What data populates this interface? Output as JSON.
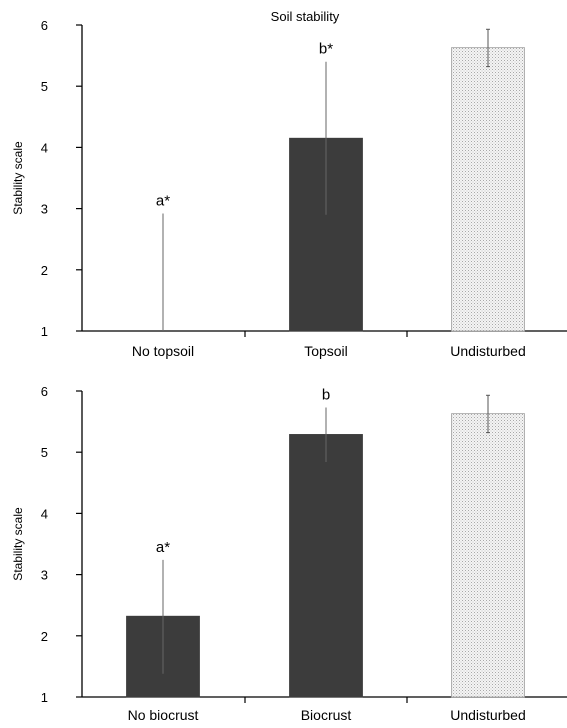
{
  "chart_data": [
    {
      "type": "bar",
      "title": "Soil stability",
      "ylabel": "Stability scale",
      "xlabel": "",
      "ylim": [
        1,
        6
      ],
      "yticks": [
        "1",
        "2",
        "3",
        "4",
        "5",
        "6"
      ],
      "categories": [
        "No topsoil",
        "Topsoil",
        "Undisturbed"
      ],
      "values": [
        1.0,
        4.15,
        5.63
      ],
      "error_upper": [
        2.92,
        5.4,
        5.93
      ],
      "error_lower": [
        1.0,
        2.9,
        5.32
      ],
      "annotations": [
        "a*",
        "b*",
        ""
      ],
      "bar_colors": [
        "#3c3c3c",
        "#3c3c3c",
        "#ececec"
      ],
      "grid": false
    },
    {
      "type": "bar",
      "title": "",
      "ylabel": "Stability scale",
      "xlabel": "",
      "ylim": [
        1,
        6
      ],
      "yticks": [
        "1",
        "2",
        "3",
        "4",
        "5",
        "6"
      ],
      "categories": [
        "No biocrust",
        "Biocrust",
        "Undisturbed"
      ],
      "values": [
        2.32,
        5.29,
        5.63
      ],
      "error_upper": [
        3.24,
        5.73,
        5.93
      ],
      "error_lower": [
        1.38,
        4.84,
        5.32
      ],
      "annotations": [
        "a*",
        "b",
        ""
      ],
      "bar_colors": [
        "#3c3c3c",
        "#3c3c3c",
        "#ececec"
      ],
      "grid": false
    }
  ]
}
